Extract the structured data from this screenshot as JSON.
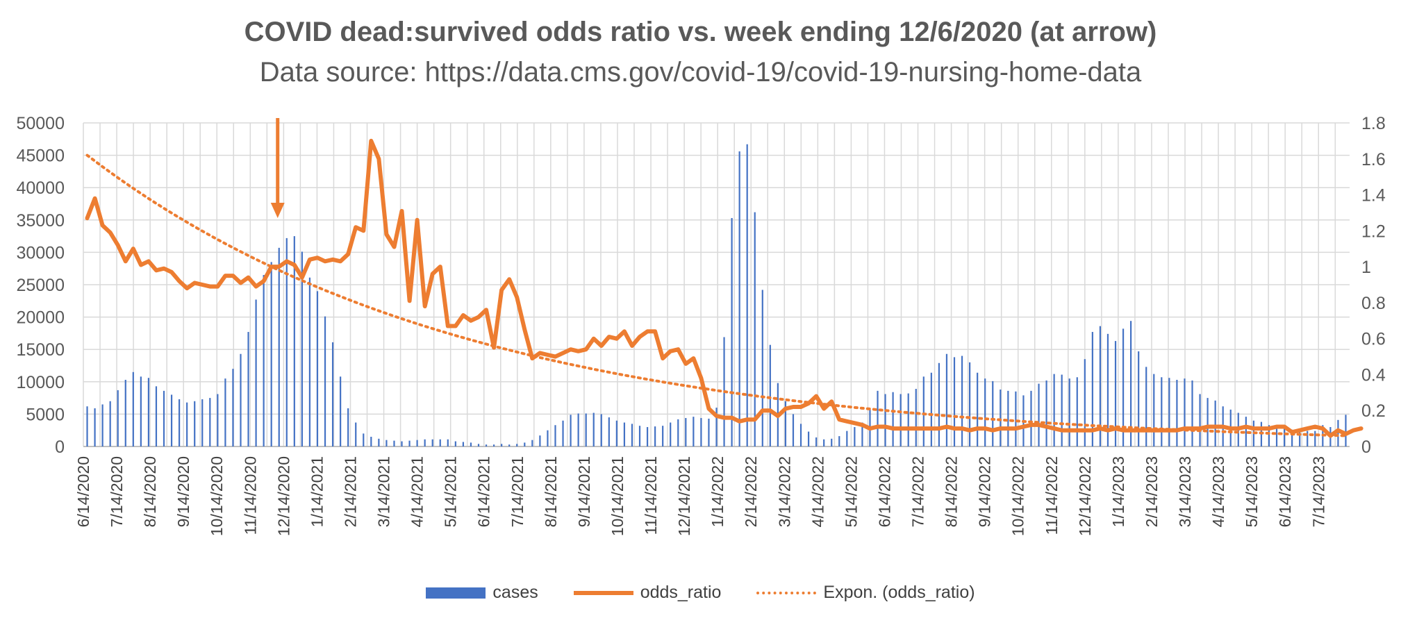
{
  "chart_data": {
    "type": "bar+line",
    "title": "COVID dead:survived odds ratio vs. week ending 12/6/2020 (at arrow)",
    "subtitle": "Data source: https://data.cms.gov/covid-19/covid-19-nursing-home-data",
    "x_tick_labels": [
      "6/14/2020",
      "7/14/2020",
      "8/14/2020",
      "9/14/2020",
      "10/14/2020",
      "11/14/2020",
      "12/14/2020",
      "1/14/2021",
      "2/14/2021",
      "3/14/2021",
      "4/14/2021",
      "5/14/2021",
      "6/14/2021",
      "7/14/2021",
      "8/14/2021",
      "9/14/2021",
      "10/14/2021",
      "11/14/2021",
      "12/14/2021",
      "1/14/2022",
      "2/14/2022",
      "3/14/2022",
      "4/14/2022",
      "5/14/2022",
      "6/14/2022",
      "7/14/2022",
      "8/14/2022",
      "9/14/2022",
      "10/14/2022",
      "11/14/2022",
      "12/14/2022",
      "1/14/2023",
      "2/14/2023",
      "3/14/2023",
      "4/14/2023",
      "5/14/2023",
      "6/14/2023",
      "7/14/2023"
    ],
    "y_left": {
      "ticks": [
        "0",
        "5000",
        "10000",
        "15000",
        "20000",
        "25000",
        "30000",
        "35000",
        "40000",
        "45000",
        "50000"
      ],
      "min": 0,
      "max": 50000
    },
    "y_right": {
      "ticks": [
        "0",
        "0.2",
        "0.4",
        "0.6",
        "0.8",
        "1",
        "1.2",
        "1.4",
        "1.6",
        "1.8"
      ],
      "min": 0,
      "max": 1.8
    },
    "arrow_week_index": 25,
    "grid": true,
    "legend_position": "bottom",
    "series": [
      {
        "name": "cases",
        "type": "bar",
        "axis": "left",
        "color": "#4472c4",
        "values": [
          6200,
          5900,
          6500,
          7000,
          8700,
          10300,
          11500,
          10800,
          10600,
          9300,
          8600,
          8000,
          7300,
          6800,
          7000,
          7300,
          7500,
          8100,
          10500,
          12000,
          14300,
          17700,
          22700,
          26500,
          28500,
          30700,
          32200,
          32500,
          30100,
          26100,
          24000,
          20100,
          16100,
          10800,
          5900,
          3700,
          2000,
          1500,
          1200,
          1000,
          900,
          800,
          900,
          1000,
          1100,
          1100,
          1100,
          1100,
          800,
          700,
          600,
          400,
          300,
          300,
          400,
          300,
          400,
          600,
          1000,
          1700,
          2500,
          3300,
          4000,
          4900,
          5100,
          5100,
          5200,
          5000,
          4500,
          4000,
          3700,
          3500,
          3200,
          3000,
          3100,
          3200,
          3700,
          4200,
          4400,
          4600,
          4400,
          4300,
          6000,
          16900,
          35300,
          45600,
          46700,
          36200,
          24200,
          15700,
          9800,
          7000,
          5000,
          3500,
          2300,
          1400,
          1100,
          1200,
          1600,
          2400,
          3000,
          3700,
          5800,
          8600,
          8100,
          8400,
          8100,
          8200,
          8900,
          10800,
          11400,
          12900,
          14300,
          13800,
          14000,
          13000,
          11400,
          10500,
          10100,
          8800,
          8600,
          8500,
          7900,
          8600,
          9700,
          10200,
          11200,
          11100,
          10500,
          10700,
          13500,
          17700,
          18600,
          17400,
          16300,
          18200,
          19400,
          14700,
          12300,
          11200,
          10700,
          10600,
          10300,
          10500,
          10200,
          8100,
          7500,
          7100,
          6200,
          5700,
          5200,
          4600,
          4000,
          3800,
          3300,
          3100,
          2800,
          2600,
          2500,
          2400,
          2400,
          3300,
          3000,
          4100,
          4900
        ]
      },
      {
        "name": "odds_ratio",
        "type": "line",
        "axis": "right",
        "color": "#ed7d31",
        "values": [
          1.27,
          1.38,
          1.23,
          1.19,
          1.12,
          1.03,
          1.1,
          1.01,
          1.03,
          0.98,
          0.99,
          0.97,
          0.92,
          0.88,
          0.91,
          0.9,
          0.89,
          0.89,
          0.95,
          0.95,
          0.91,
          0.94,
          0.89,
          0.92,
          1.0,
          1.0,
          1.03,
          1.01,
          0.94,
          1.04,
          1.05,
          1.03,
          1.04,
          1.03,
          1.07,
          1.22,
          1.2,
          1.7,
          1.6,
          1.18,
          1.11,
          1.31,
          0.81,
          1.26,
          0.78,
          0.96,
          1.0,
          0.67,
          0.67,
          0.73,
          0.7,
          0.72,
          0.76,
          0.55,
          0.87,
          0.93,
          0.83,
          0.65,
          0.49,
          0.52,
          0.51,
          0.5,
          0.52,
          0.54,
          0.53,
          0.54,
          0.6,
          0.56,
          0.61,
          0.6,
          0.64,
          0.56,
          0.61,
          0.64,
          0.64,
          0.49,
          0.53,
          0.54,
          0.46,
          0.49,
          0.38,
          0.21,
          0.17,
          0.16,
          0.16,
          0.14,
          0.15,
          0.15,
          0.2,
          0.2,
          0.17,
          0.21,
          0.22,
          0.22,
          0.24,
          0.28,
          0.21,
          0.25,
          0.15,
          0.14,
          0.13,
          0.12,
          0.1,
          0.11,
          0.11,
          0.1,
          0.1,
          0.1,
          0.1,
          0.1,
          0.1,
          0.1,
          0.11,
          0.1,
          0.1,
          0.09,
          0.1,
          0.1,
          0.09,
          0.1,
          0.1,
          0.1,
          0.11,
          0.12,
          0.12,
          0.11,
          0.1,
          0.09,
          0.09,
          0.09,
          0.09,
          0.09,
          0.1,
          0.09,
          0.1,
          0.09,
          0.09,
          0.09,
          0.09,
          0.09,
          0.09,
          0.09,
          0.09,
          0.1,
          0.1,
          0.1,
          0.11,
          0.11,
          0.11,
          0.1,
          0.1,
          0.11,
          0.1,
          0.1,
          0.1,
          0.11,
          0.11,
          0.08,
          0.09,
          0.1,
          0.11,
          0.1,
          0.06,
          0.09,
          0.07,
          0.09,
          0.1
        ]
      },
      {
        "name": "Expon. (odds_ratio)",
        "type": "trendline",
        "axis": "right",
        "color": "#ed7d31",
        "start": 1.62,
        "end": 0.06
      }
    ]
  }
}
